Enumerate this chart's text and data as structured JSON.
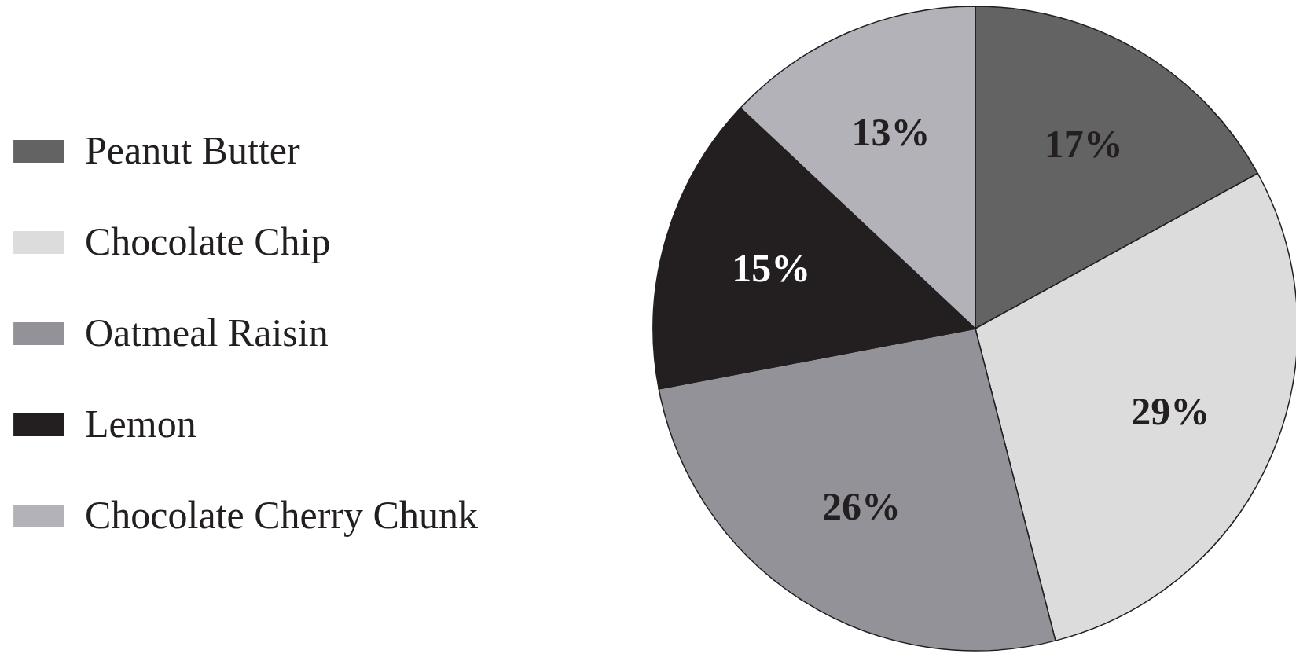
{
  "chart_data": {
    "type": "pie",
    "categories": [
      "Peanut Butter",
      "Chocolate Chip",
      "Oatmeal Raisin",
      "Lemon",
      "Chocolate Cherry Chunk"
    ],
    "values": [
      17,
      29,
      26,
      15,
      13
    ],
    "value_labels": [
      "17%",
      "29%",
      "26%",
      "15%",
      "13%"
    ],
    "colors": [
      "#636363",
      "#dcdcdc",
      "#939298",
      "#231f20",
      "#b3b2b8"
    ],
    "legend": "left"
  }
}
